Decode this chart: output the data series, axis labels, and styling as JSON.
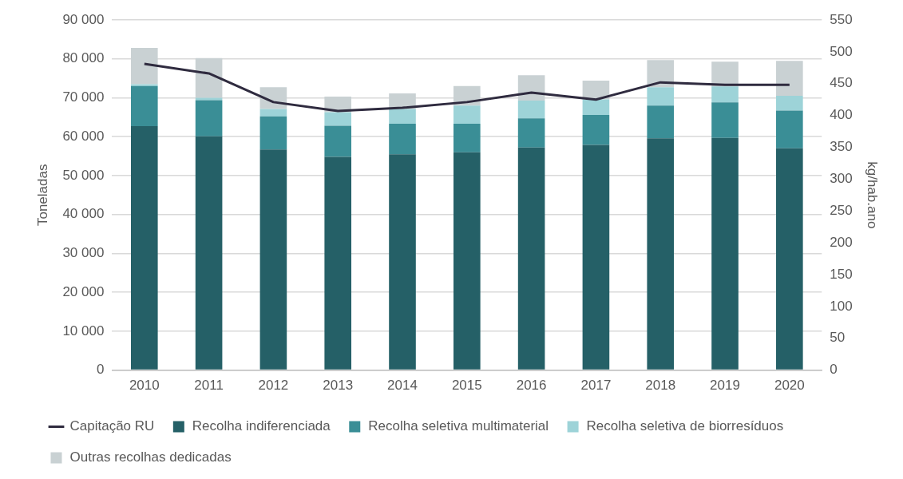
{
  "chart_data": {
    "type": "bar",
    "stacked": true,
    "ylabel": "Toneladas",
    "y2label": "kg/hab.ano",
    "categories": [
      "2010",
      "2011",
      "2012",
      "2013",
      "2014",
      "2015",
      "2016",
      "2017",
      "2018",
      "2019",
      "2020"
    ],
    "series": [
      {
        "name": "Recolha indiferenciada",
        "color": "#256067",
        "values": [
          62700,
          60100,
          56700,
          54800,
          55500,
          56000,
          57200,
          57900,
          59600,
          59700,
          57000
        ]
      },
      {
        "name": "Recolha seletiva multimaterial",
        "color": "#3a8e96",
        "values": [
          10300,
          9300,
          8500,
          8000,
          7800,
          7300,
          7500,
          7700,
          8400,
          9100,
          9700
        ]
      },
      {
        "name": "Recolha seletiva de biorresíduos",
        "color": "#9dd3d8",
        "values": [
          500,
          600,
          1900,
          3500,
          3800,
          4700,
          4600,
          4000,
          4700,
          4100,
          3800
        ]
      },
      {
        "name": "Outras recolhas dedicadas",
        "color": "#c9d1d3",
        "values": [
          9300,
          10200,
          5600,
          4000,
          4000,
          5000,
          6500,
          4800,
          7000,
          6400,
          9000
        ]
      },
      {
        "name": "Capitação RU",
        "type": "line",
        "axis": "y2",
        "color": "#2f2b3f",
        "values": [
          481,
          466,
          421,
          407,
          412,
          421,
          436,
          425,
          452,
          448,
          448
        ]
      }
    ],
    "ylim": [
      0,
      90000
    ],
    "yticks": [
      {
        "value": 0,
        "label": "0"
      },
      {
        "value": 10000,
        "label": "10 000"
      },
      {
        "value": 20000,
        "label": "20 000"
      },
      {
        "value": 30000,
        "label": "30 000"
      },
      {
        "value": 40000,
        "label": "40 000"
      },
      {
        "value": 50000,
        "label": "50 000"
      },
      {
        "value": 60000,
        "label": "60 000"
      },
      {
        "value": 70000,
        "label": "70 000"
      },
      {
        "value": 80000,
        "label": "80 000"
      },
      {
        "value": 90000,
        "label": "90 000"
      }
    ],
    "y2lim": [
      0,
      550
    ],
    "y2ticks": [
      0,
      50,
      100,
      150,
      200,
      250,
      300,
      350,
      400,
      450,
      500,
      550
    ],
    "grid": "y",
    "legend": "bottom",
    "marker": "none",
    "line_style": "solid"
  }
}
